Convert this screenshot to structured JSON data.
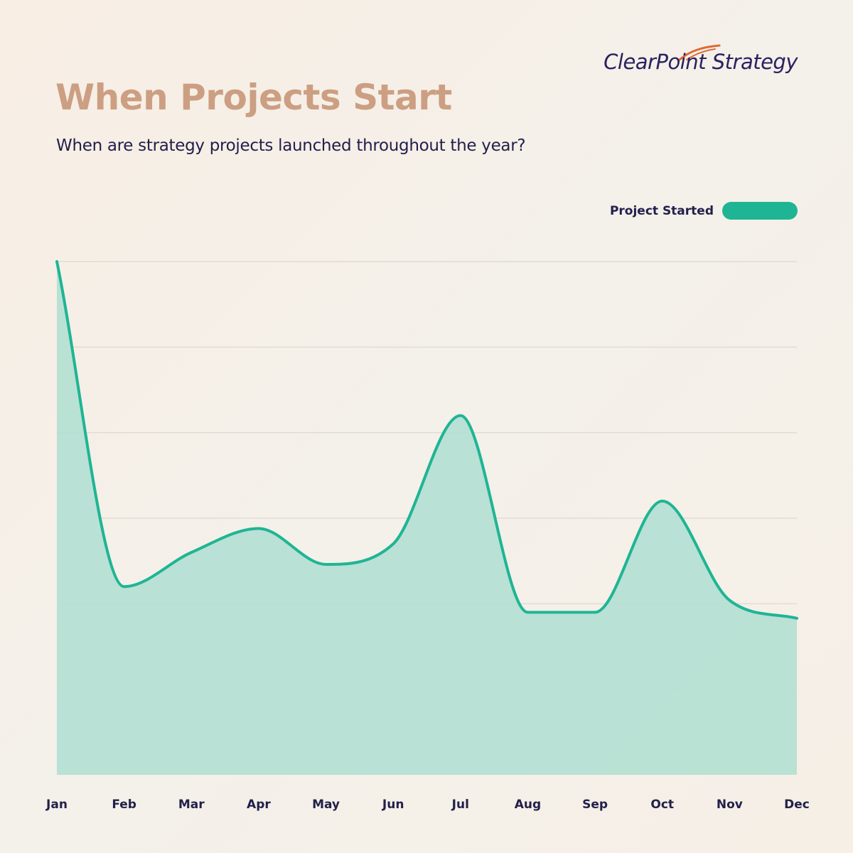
{
  "brand": {
    "name": "ClearPoint Strategy",
    "swoosh_color": "#e06a35",
    "text_color": "#2a2260"
  },
  "chart_data": {
    "type": "area",
    "title": "When Projects Start",
    "subtitle": "When are strategy projects launched throughout the year?",
    "xlabel": "",
    "ylabel": "",
    "categories": [
      "Jan",
      "Feb",
      "Mar",
      "Apr",
      "May",
      "Jun",
      "Jul",
      "Aug",
      "Sep",
      "Oct",
      "Nov",
      "Dec"
    ],
    "series": [
      {
        "name": "Project Started",
        "values": [
          6.0,
          2.2,
          2.6,
          2.88,
          2.46,
          2.7,
          4.2,
          1.9,
          1.9,
          3.2,
          2.04,
          1.83
        ],
        "color": "#1fb594",
        "fill": "#b3e0d2"
      }
    ],
    "ylim": [
      0,
      6
    ],
    "grid": true,
    "gridlines": 6,
    "legend": "top-right"
  }
}
